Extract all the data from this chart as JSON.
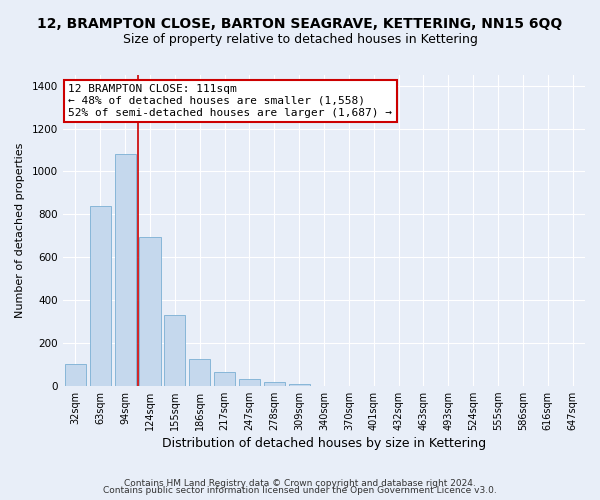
{
  "title": "12, BRAMPTON CLOSE, BARTON SEAGRAVE, KETTERING, NN15 6QQ",
  "subtitle": "Size of property relative to detached houses in Kettering",
  "xlabel": "Distribution of detached houses by size in Kettering",
  "ylabel": "Number of detached properties",
  "bar_color": "#c5d8ed",
  "bar_edge_color": "#7aafd4",
  "categories": [
    "32sqm",
    "63sqm",
    "94sqm",
    "124sqm",
    "155sqm",
    "186sqm",
    "217sqm",
    "247sqm",
    "278sqm",
    "309sqm",
    "340sqm",
    "370sqm",
    "401sqm",
    "432sqm",
    "463sqm",
    "493sqm",
    "524sqm",
    "555sqm",
    "586sqm",
    "616sqm",
    "647sqm"
  ],
  "values": [
    100,
    840,
    1080,
    695,
    330,
    125,
    62,
    32,
    18,
    8,
    0,
    0,
    0,
    0,
    0,
    0,
    0,
    0,
    0,
    0,
    0
  ],
  "ylim": [
    0,
    1450
  ],
  "yticks": [
    0,
    200,
    400,
    600,
    800,
    1000,
    1200,
    1400
  ],
  "annotation_title": "12 BRAMPTON CLOSE: 111sqm",
  "annotation_line1": "← 48% of detached houses are smaller (1,558)",
  "annotation_line2": "52% of semi-detached houses are larger (1,687) →",
  "annotation_box_color": "#ffffff",
  "annotation_box_edge": "#cc0000",
  "vline_color": "#cc0000",
  "footer1": "Contains HM Land Registry data © Crown copyright and database right 2024.",
  "footer2": "Contains public sector information licensed under the Open Government Licence v3.0.",
  "background_color": "#e8eef8",
  "plot_background": "#e8eef8",
  "grid_color": "#ffffff",
  "title_fontsize": 10,
  "subtitle_fontsize": 9,
  "xlabel_fontsize": 9,
  "ylabel_fontsize": 8,
  "tick_fontsize": 7,
  "annotation_fontsize": 8,
  "footer_fontsize": 6.5
}
